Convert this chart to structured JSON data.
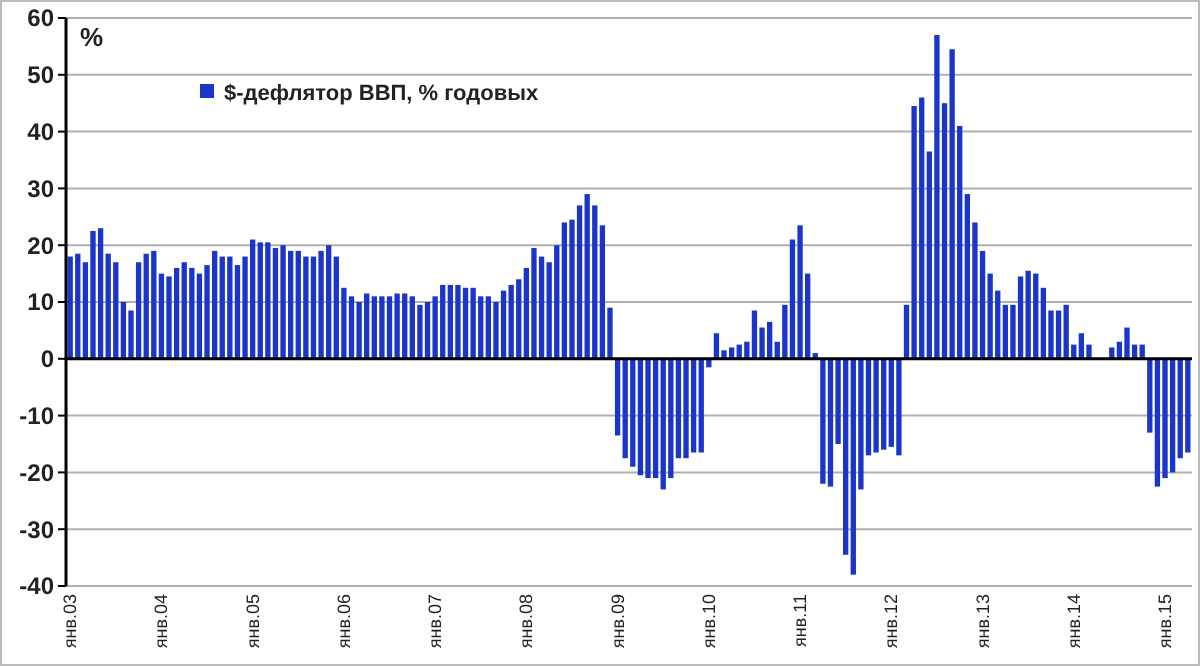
{
  "chart_data": {
    "type": "bar",
    "ylabel": "%",
    "categories": [
      "янв.03",
      null,
      null,
      null,
      null,
      null,
      null,
      null,
      null,
      null,
      null,
      null,
      "янв.04",
      null,
      null,
      null,
      null,
      null,
      null,
      null,
      null,
      null,
      null,
      null,
      "янв.05",
      null,
      null,
      null,
      null,
      null,
      null,
      null,
      null,
      null,
      null,
      null,
      "янв.06",
      null,
      null,
      null,
      null,
      null,
      null,
      null,
      null,
      null,
      null,
      null,
      "янв.07",
      null,
      null,
      null,
      null,
      null,
      null,
      null,
      null,
      null,
      null,
      null,
      "янв.08",
      null,
      null,
      null,
      null,
      null,
      null,
      null,
      null,
      null,
      null,
      null,
      "янв.09",
      null,
      null,
      null,
      null,
      null,
      null,
      null,
      null,
      null,
      null,
      null,
      "янв.10",
      null,
      null,
      null,
      null,
      null,
      null,
      null,
      null,
      null,
      null,
      null,
      "янв.11",
      null,
      null,
      null,
      null,
      null,
      null,
      null,
      null,
      null,
      null,
      null,
      "янв.12",
      null,
      null,
      null,
      null,
      null,
      null,
      null,
      null,
      null,
      null,
      null,
      "янв.13",
      null,
      null,
      null,
      null,
      null,
      null,
      null,
      null,
      null,
      null,
      null,
      "янв.14",
      null,
      null,
      null,
      null,
      null,
      null,
      null,
      null,
      null,
      null,
      null,
      "янв.15",
      null,
      null,
      null
    ],
    "series": [
      {
        "name": "$-дефлятор ВВП, % годовых",
        "color": "#1a35c8",
        "values": [
          18,
          18.5,
          17,
          22.5,
          23,
          18.5,
          17,
          10,
          8.5,
          17,
          18.5,
          19,
          15,
          14.5,
          16,
          17,
          16,
          15,
          16.5,
          19,
          18,
          18,
          16.5,
          18,
          21,
          20.5,
          20.5,
          19.5,
          20,
          19,
          19,
          18,
          18,
          19,
          20,
          18,
          12.5,
          11,
          10,
          11.5,
          11,
          11,
          11,
          11.5,
          11.5,
          11,
          9.5,
          10,
          11,
          13,
          13,
          13,
          12.5,
          12.5,
          11,
          11,
          10,
          12,
          13,
          14,
          16,
          19.5,
          18,
          17,
          20,
          24,
          24.5,
          27,
          29,
          27,
          23.5,
          9,
          -13.5,
          -17.5,
          -19,
          -20.5,
          -21,
          -21,
          -23,
          -21,
          -17.5,
          -17.5,
          -16.5,
          -16.5,
          -1.5,
          4.5,
          1.5,
          2,
          2.5,
          3,
          8.5,
          5.5,
          6.5,
          3,
          9.5,
          21,
          23.5,
          15,
          1,
          -22,
          -22.5,
          -15,
          -34.5,
          -38,
          -23,
          -17,
          -16.5,
          -16,
          -15.5,
          -17,
          9.5,
          44.5,
          46,
          36.5,
          57,
          45,
          54.5,
          41,
          29,
          24,
          19,
          15,
          12,
          9.5,
          9.5,
          14.5,
          15.5,
          15,
          12.5,
          8.5,
          8.5,
          9.5,
          2.5,
          4.5,
          2.5,
          null,
          null,
          2,
          3,
          5.5,
          2.5,
          2.5,
          -13,
          -22.5,
          -21,
          -20,
          -17.5,
          -16.5
        ]
      }
    ],
    "ylim": [
      -40,
      60
    ],
    "yticks": [
      -40,
      -30,
      -20,
      -10,
      0,
      10,
      20,
      30,
      40,
      50,
      60
    ],
    "grid": "y",
    "legend": "top left"
  }
}
